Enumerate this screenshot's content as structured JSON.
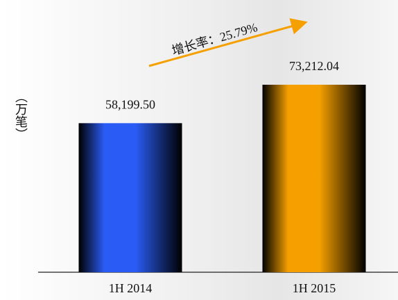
{
  "chart_data": {
    "type": "bar",
    "y_label": "（万笔）",
    "annotation": "增长率：25.79%",
    "categories": [
      "1H 2014",
      "1H 2015"
    ],
    "values": [
      58199.5,
      73212.04
    ],
    "value_labels": [
      "58,199.50",
      "73,212.04"
    ],
    "colors": [
      "#2a5cf5",
      "#f5a000"
    ]
  }
}
